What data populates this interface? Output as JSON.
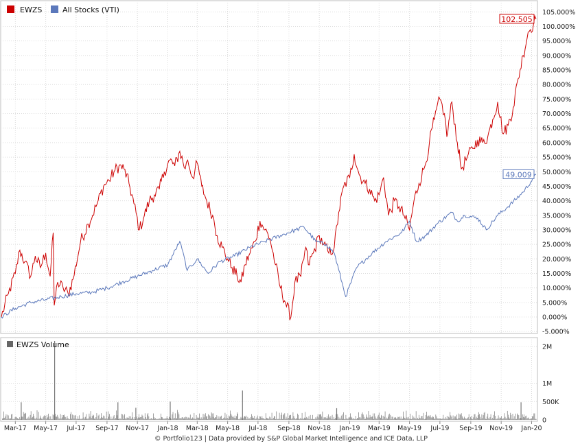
{
  "chart_data": [
    {
      "type": "line",
      "series": [
        {
          "name": "EWZS",
          "color": "#cc0000",
          "end_label": "102.505",
          "x": [
            "2017-02-01",
            "2017-02-15",
            "2017-03-01",
            "2017-03-10",
            "2017-03-20",
            "2017-04-01",
            "2017-04-10",
            "2017-04-20",
            "2017-05-01",
            "2017-05-10",
            "2017-05-16",
            "2017-05-18",
            "2017-05-25",
            "2017-06-05",
            "2017-06-15",
            "2017-06-25",
            "2017-07-10",
            "2017-07-25",
            "2017-08-10",
            "2017-08-25",
            "2017-09-05",
            "2017-09-15",
            "2017-09-25",
            "2017-10-05",
            "2017-10-15",
            "2017-10-25",
            "2017-11-05",
            "2017-11-15",
            "2017-11-25",
            "2017-12-05",
            "2017-12-15",
            "2017-12-25",
            "2018-01-05",
            "2018-01-15",
            "2018-01-25",
            "2018-02-05",
            "2018-02-10",
            "2018-02-20",
            "2018-03-01",
            "2018-03-10",
            "2018-03-20",
            "2018-04-01",
            "2018-04-10",
            "2018-04-20",
            "2018-05-01",
            "2018-05-10",
            "2018-05-20",
            "2018-05-28",
            "2018-06-05",
            "2018-06-15",
            "2018-06-25",
            "2018-07-05",
            "2018-07-15",
            "2018-07-25",
            "2018-08-05",
            "2018-08-15",
            "2018-08-25",
            "2018-09-05",
            "2018-09-13",
            "2018-09-25",
            "2018-10-05",
            "2018-10-10",
            "2018-10-20",
            "2018-11-01",
            "2018-11-10",
            "2018-11-20",
            "2018-12-01",
            "2018-12-10",
            "2018-12-20",
            "2019-01-01",
            "2019-01-10",
            "2019-01-20",
            "2019-02-01",
            "2019-02-10",
            "2019-02-20",
            "2019-03-01",
            "2019-03-10",
            "2019-03-20",
            "2019-04-01",
            "2019-04-10",
            "2019-04-20",
            "2019-05-01",
            "2019-05-10",
            "2019-05-20",
            "2019-06-01",
            "2019-06-10",
            "2019-06-20",
            "2019-07-01",
            "2019-07-10",
            "2019-07-15",
            "2019-07-25",
            "2019-08-05",
            "2019-08-13",
            "2019-08-25",
            "2019-09-05",
            "2019-09-15",
            "2019-09-25",
            "2019-10-05",
            "2019-10-15",
            "2019-10-25",
            "2019-11-05",
            "2019-11-15",
            "2019-11-25",
            "2019-12-05",
            "2019-12-15",
            "2019-12-25",
            "2020-01-05",
            "2020-01-10"
          ],
          "y": [
            0,
            8,
            15,
            23,
            19,
            14,
            21,
            17,
            22,
            14,
            29,
            4,
            12,
            10,
            8,
            13,
            26,
            32,
            38,
            45,
            47,
            50,
            52,
            51,
            46,
            39,
            30,
            35,
            40,
            42,
            44,
            50,
            54,
            52,
            57,
            51,
            54,
            48,
            53,
            45,
            40,
            35,
            28,
            24,
            20,
            17,
            14,
            12,
            18,
            22,
            26,
            33,
            30,
            27,
            18,
            10,
            5,
            0,
            12,
            14,
            24,
            18,
            22,
            28,
            25,
            22,
            24,
            36,
            45,
            48,
            56,
            49,
            46,
            44,
            40,
            42,
            48,
            35,
            40,
            38,
            35,
            30,
            40,
            46,
            52,
            60,
            68,
            75,
            70,
            62,
            74,
            60,
            51,
            55,
            58,
            61,
            60,
            62,
            68,
            74,
            63,
            66,
            72,
            82,
            90,
            98,
            101,
            102.505
          ]
        },
        {
          "name": "All Stocks (VTI)",
          "color": "#5b78bb",
          "end_label": "49.009",
          "x": [
            "2017-02-01",
            "2017-03-01",
            "2017-04-01",
            "2017-05-01",
            "2017-06-01",
            "2017-07-01",
            "2017-08-01",
            "2017-09-01",
            "2017-10-01",
            "2017-11-01",
            "2017-12-01",
            "2018-01-01",
            "2018-01-25",
            "2018-02-05",
            "2018-02-09",
            "2018-03-01",
            "2018-03-23",
            "2018-04-15",
            "2018-05-15",
            "2018-06-15",
            "2018-07-15",
            "2018-08-15",
            "2018-09-15",
            "2018-10-01",
            "2018-10-25",
            "2018-11-15",
            "2018-12-01",
            "2018-12-24",
            "2019-01-15",
            "2019-02-15",
            "2019-03-15",
            "2019-04-15",
            "2019-05-01",
            "2019-05-15",
            "2019-06-03",
            "2019-06-25",
            "2019-07-25",
            "2019-08-05",
            "2019-08-20",
            "2019-09-15",
            "2019-10-02",
            "2019-10-25",
            "2019-11-15",
            "2019-12-15",
            "2020-01-10"
          ],
          "y": [
            0,
            3,
            5,
            6,
            7,
            8,
            8.5,
            10,
            12,
            14,
            16,
            18,
            26,
            19,
            16,
            20,
            15,
            19,
            21,
            24,
            26,
            28,
            30,
            31,
            26,
            25,
            22,
            7,
            17,
            22,
            26,
            29,
            33,
            26,
            28,
            32,
            36,
            33,
            35,
            34,
            30,
            35,
            38,
            43,
            49.009
          ]
        }
      ],
      "ylim": [
        -5,
        107
      ],
      "y_ticks": [
        "-5.000%",
        "0.000%",
        "5.000%",
        "10.000%",
        "15.000%",
        "20.000%",
        "25.000%",
        "30.000%",
        "35.000%",
        "40.000%",
        "45.000%",
        "50.000%",
        "55.000%",
        "60.000%",
        "65.000%",
        "70.000%",
        "75.000%",
        "80.000%",
        "85.000%",
        "90.000%",
        "95.000%",
        "100.000%",
        "105.000%"
      ],
      "grid": true,
      "legend": "top-left"
    },
    {
      "type": "bar",
      "title": "EWZS Volume",
      "color": "#888888",
      "ylim": [
        0,
        2200000
      ],
      "y_ticks": [
        "0",
        "500K",
        "1M",
        "2M"
      ],
      "x_ticks": [
        "Mar-17",
        "May-17",
        "Jul-17",
        "Sep-17",
        "Nov-17",
        "Jan-18",
        "Mar-18",
        "May-18",
        "Jul-18",
        "Sep-18",
        "Nov-18",
        "Jan-19",
        "Mar-19",
        "May-19",
        "Jul-19",
        "Sep-19",
        "Nov-19",
        "Jan-20"
      ],
      "spikes": [
        {
          "date": "2017-03-12",
          "value": 480000
        },
        {
          "date": "2017-05-18",
          "value": 2150000
        },
        {
          "date": "2017-09-22",
          "value": 480000
        },
        {
          "date": "2017-10-28",
          "value": 330000
        },
        {
          "date": "2018-01-05",
          "value": 500000
        },
        {
          "date": "2018-05-30",
          "value": 800000
        },
        {
          "date": "2018-12-05",
          "value": 320000
        },
        {
          "date": "2019-12-10",
          "value": 480000
        }
      ]
    }
  ],
  "footer": "© Portfolio123 | Data provided by S&P Global Market Intelligence and ICE Data, LLP"
}
